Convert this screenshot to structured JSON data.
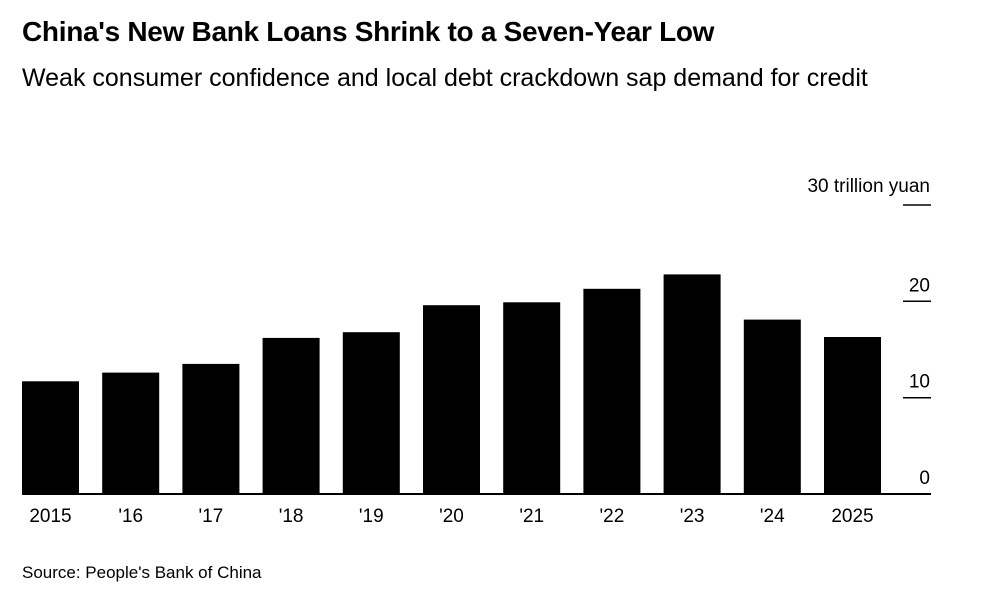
{
  "header": {
    "title": "China's New Bank Loans Shrink to a Seven-Year Low",
    "subtitle": "Weak consumer confidence and local debt crackdown sap demand for credit"
  },
  "footer": {
    "source": "Source: People's Bank of China"
  },
  "chart_data": {
    "type": "bar",
    "categories": [
      "2015",
      "'16",
      "'17",
      "'18",
      "'19",
      "'20",
      "'21",
      "'22",
      "'23",
      "'24",
      "2025"
    ],
    "values": [
      11.7,
      12.6,
      13.5,
      16.2,
      16.8,
      19.6,
      19.9,
      21.3,
      22.8,
      18.1,
      16.3
    ],
    "unit_label": "30 trillion yuan",
    "y_ticks": [
      0,
      10,
      20,
      30
    ],
    "y_tick_labels": [
      "0",
      "10",
      "20",
      ""
    ],
    "ylim": [
      0,
      30
    ],
    "bar_color": "#000000",
    "grid": false,
    "y_axis_position": "right"
  }
}
